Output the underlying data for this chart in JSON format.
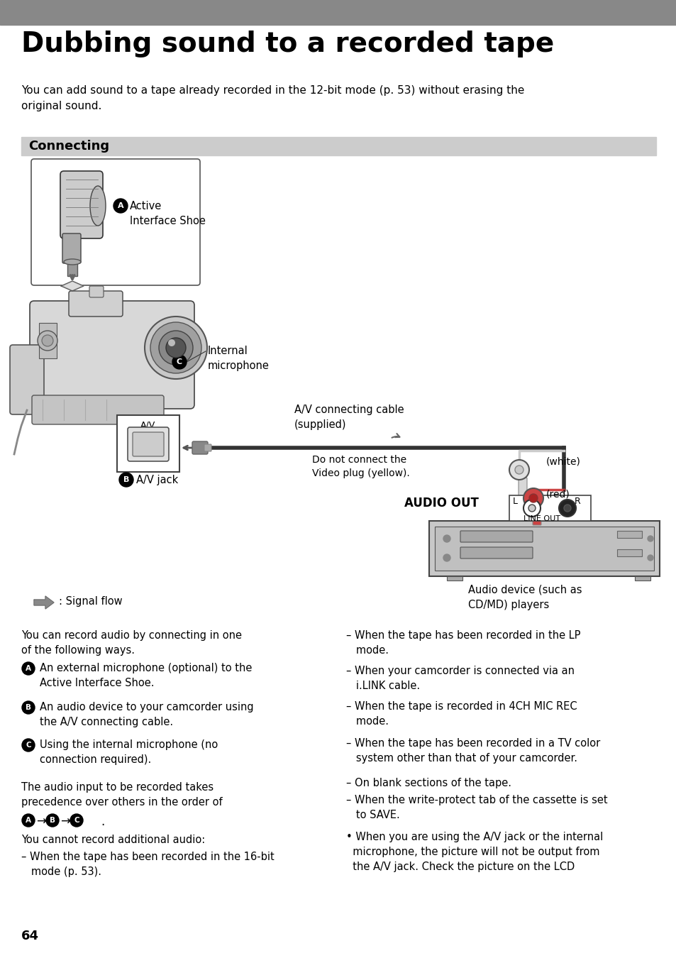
{
  "title": "Dubbing sound to a recorded tape",
  "header_bar_color": "#888888",
  "section_bar_color": "#cccccc",
  "section_title": "Connecting",
  "bg_color": "#ffffff",
  "intro_text": "You can add sound to a tape already recorded in the 12-bit mode (p. 53) without erasing the\noriginal sound.",
  "label_A": "A",
  "label_B": "B",
  "label_C": "C",
  "text_active_interface": "Active\nInterface Shoe",
  "text_internal_mic": "Internal\nmicrophone",
  "text_av_jack": "A/V jack",
  "text_av_cable": "A/V connecting cable\n(supplied)",
  "text_no_video": "Do not connect the\nVideo plug (yellow).",
  "text_white": "(white)",
  "text_red": "(red)",
  "text_audio_out": "AUDIO OUT",
  "text_line_out": "LINE OUT",
  "text_audio_device": "Audio device (such as\nCD/MD) players",
  "text_signal_flow": ": Signal flow",
  "body_left_title": "You can record audio by connecting in one\nof the following ways.",
  "body_left_A": "An external microphone (optional) to the\nActive Interface Shoe.",
  "body_left_B": "An audio device to your camcorder using\nthe A/V connecting cable.",
  "body_left_C": "Using the internal microphone (no\nconnection required).",
  "body_left_para": "The audio input to be recorded takes\nprecedence over others in the order of",
  "body_left_cannot": "You cannot record additional audio:",
  "body_left_bullet1": "– When the tape has been recorded in the 16-bit\n   mode (p. 53).",
  "body_right_bullet1": "– When the tape has been recorded in the LP\n   mode.",
  "body_right_bullet2": "– When your camcorder is connected via an\n   i.LINK cable.",
  "body_right_bullet3": "– When the tape is recorded in 4CH MIC REC\n   mode.",
  "body_right_bullet4": "– When the tape has been recorded in a TV color\n   system other than that of your camcorder.",
  "body_right_bullet5": "– On blank sections of the tape.",
  "body_right_bullet6": "– When the write-protect tab of the cassette is set\n   to SAVE.",
  "body_right_bullet7": "• When you are using the A/V jack or the internal\n  microphone, the picture will not be output from\n  the A/V jack. Check the picture on the LCD",
  "page_number": "64",
  "font_color": "#000000"
}
